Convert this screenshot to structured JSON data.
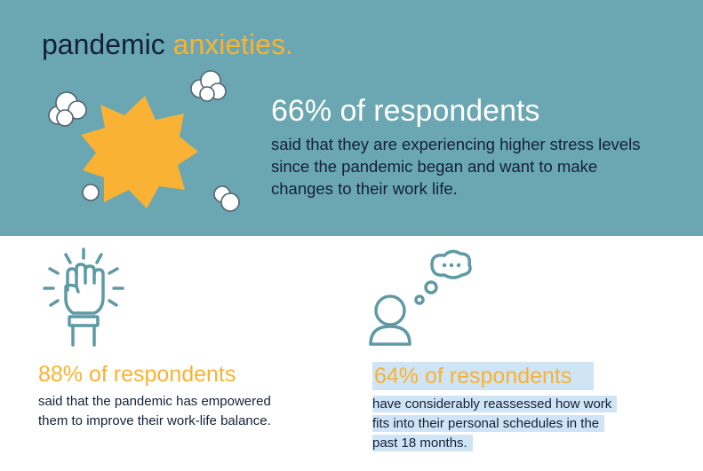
{
  "header": {
    "title_main": "pandemic",
    "title_accent": "anxieties."
  },
  "hero": {
    "stat": "66% of respondents",
    "description": "said that they are experiencing higher stress levels since the pandemic began and want to make changes to their work life."
  },
  "cards": [
    {
      "stat": "88% of respondents",
      "description_lines": [
        "said that the pandemic has empowered",
        "them to improve their work-life balance."
      ],
      "icon": "raised-fist-icon"
    },
    {
      "stat": "64% of respondents",
      "description_lines": [
        "have considerably reassessed how work",
        "fits into their personal schedules in the",
        "past 18 months."
      ],
      "icon": "thinking-person-icon"
    }
  ],
  "colors": {
    "band": "#6aa7b2",
    "accent": "#f9b233",
    "navy": "#14203a",
    "icon_stroke": "#5e9aa5",
    "highlight": "#cfe4f5"
  }
}
